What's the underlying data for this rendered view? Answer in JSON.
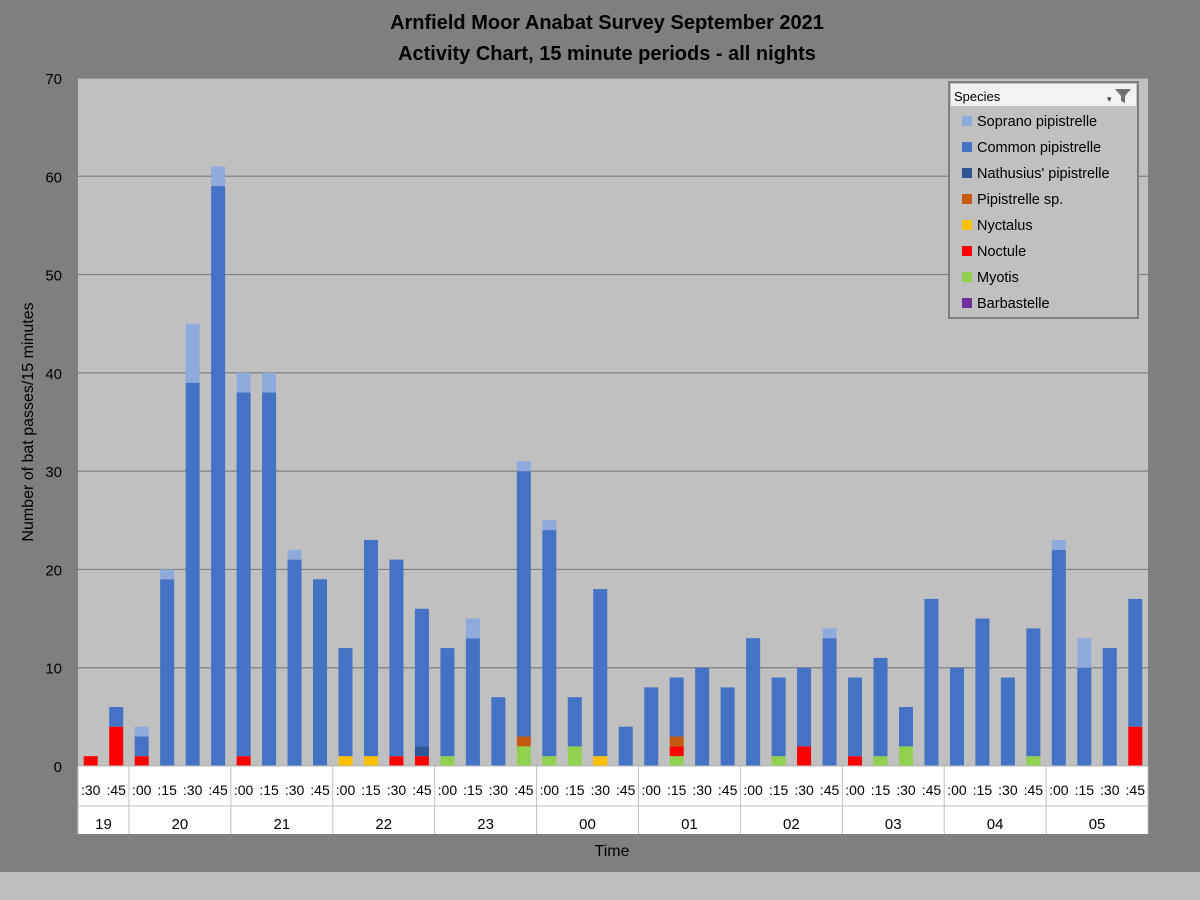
{
  "chart_data": {
    "type": "bar",
    "stacked": true,
    "title": "Arnfield Moor Anabat Survey September 2021",
    "subtitle": "Activity Chart, 15 minute periods - all nights",
    "xlabel": "Time",
    "ylabel": "Number of bat passes/15 minutes",
    "ylim": [
      0,
      70
    ],
    "yticks": [
      0,
      10,
      20,
      30,
      40,
      50,
      60,
      70
    ],
    "grid": true,
    "legend": {
      "title": "Species",
      "position": "top-right"
    },
    "hours": [
      {
        "label": "19",
        "count": 2
      },
      {
        "label": "20",
        "count": 4
      },
      {
        "label": "21",
        "count": 4
      },
      {
        "label": "22",
        "count": 4
      },
      {
        "label": "23",
        "count": 4
      },
      {
        "label": "00",
        "count": 4
      },
      {
        "label": "01",
        "count": 4
      },
      {
        "label": "02",
        "count": 4
      },
      {
        "label": "03",
        "count": 4
      },
      {
        "label": "04",
        "count": 4
      },
      {
        "label": "05",
        "count": 4
      }
    ],
    "categories": [
      ":30",
      ":45",
      ":00",
      ":15",
      ":30",
      ":45",
      ":00",
      ":15",
      ":30",
      ":45",
      ":00",
      ":15",
      ":30",
      ":45",
      ":00",
      ":15",
      ":30",
      ":45",
      ":00",
      ":15",
      ":30",
      ":45",
      ":00",
      ":15",
      ":30",
      ":45",
      ":00",
      ":15",
      ":30",
      ":45",
      ":00",
      ":15",
      ":30",
      ":45",
      ":00",
      ":15",
      ":30",
      ":45",
      ":00",
      ":15",
      ":30",
      ":45"
    ],
    "series": [
      {
        "name": "Barbastelle",
        "color": "#7030a0",
        "values": [
          0,
          0,
          0,
          0,
          0,
          0,
          0,
          0,
          0,
          0,
          0,
          0,
          0,
          0,
          0,
          0,
          0,
          0,
          0,
          0,
          0,
          0,
          0,
          0,
          0,
          0,
          0,
          0,
          0,
          0,
          0,
          0,
          0,
          0,
          0,
          0,
          0,
          0,
          0,
          0,
          0,
          0
        ]
      },
      {
        "name": "Myotis",
        "color": "#92d050",
        "values": [
          0,
          0,
          0,
          0,
          0,
          0,
          0,
          0,
          0,
          0,
          0,
          0,
          0,
          0,
          1,
          0,
          0,
          2,
          1,
          2,
          0,
          0,
          0,
          1,
          0,
          0,
          0,
          1,
          0,
          0,
          0,
          1,
          2,
          0,
          0,
          0,
          0,
          1,
          0,
          0,
          0,
          0
        ]
      },
      {
        "name": "Noctule",
        "color": "#ff0000",
        "values": [
          1,
          4,
          1,
          0,
          0,
          0,
          1,
          0,
          0,
          0,
          0,
          0,
          1,
          1,
          0,
          0,
          0,
          0,
          0,
          0,
          0,
          0,
          0,
          1,
          0,
          0,
          0,
          0,
          2,
          0,
          1,
          0,
          0,
          0,
          0,
          0,
          0,
          0,
          0,
          0,
          0,
          4
        ]
      },
      {
        "name": "Nyctalus",
        "color": "#ffc000",
        "values": [
          0,
          0,
          0,
          0,
          0,
          0,
          0,
          0,
          0,
          0,
          1,
          1,
          0,
          0,
          0,
          0,
          0,
          0,
          0,
          0,
          1,
          0,
          0,
          0,
          0,
          0,
          0,
          0,
          0,
          0,
          0,
          0,
          0,
          0,
          0,
          0,
          0,
          0,
          0,
          0,
          0,
          0
        ]
      },
      {
        "name": "Pipistrelle sp.",
        "color": "#c55a11",
        "values": [
          0,
          0,
          0,
          0,
          0,
          0,
          0,
          0,
          0,
          0,
          0,
          0,
          0,
          0,
          0,
          0,
          0,
          1,
          0,
          0,
          0,
          0,
          0,
          1,
          0,
          0,
          0,
          0,
          0,
          0,
          0,
          0,
          0,
          0,
          0,
          0,
          0,
          0,
          0,
          0,
          0,
          0
        ]
      },
      {
        "name": "Nathusius' pipistrelle",
        "color": "#2f5597",
        "values": [
          0,
          0,
          0,
          0,
          0,
          0,
          0,
          0,
          0,
          0,
          0,
          0,
          0,
          1,
          0,
          0,
          0,
          0,
          0,
          0,
          0,
          0,
          0,
          0,
          0,
          0,
          0,
          0,
          0,
          0,
          0,
          0,
          0,
          0,
          0,
          0,
          0,
          0,
          0,
          0,
          0,
          0
        ]
      },
      {
        "name": "Common pipistrelle",
        "color": "#4472c4",
        "values": [
          0,
          2,
          2,
          19,
          39,
          59,
          37,
          38,
          21,
          19,
          11,
          22,
          20,
          14,
          11,
          13,
          7,
          27,
          23,
          5,
          17,
          4,
          8,
          6,
          10,
          8,
          13,
          8,
          8,
          13,
          8,
          10,
          4,
          17,
          10,
          15,
          9,
          13,
          22,
          10,
          12,
          13
        ]
      },
      {
        "name": "Soprano pipistrelle",
        "color": "#8faadc",
        "values": [
          0,
          0,
          1,
          1,
          6,
          2,
          2,
          2,
          1,
          0,
          0,
          0,
          0,
          0,
          0,
          2,
          0,
          1,
          1,
          0,
          0,
          0,
          0,
          0,
          0,
          0,
          0,
          0,
          0,
          1,
          0,
          0,
          0,
          0,
          0,
          0,
          0,
          0,
          1,
          3,
          0,
          0
        ]
      }
    ],
    "legend_order": [
      "Soprano pipistrelle",
      "Common pipistrelle",
      "Nathusius' pipistrelle",
      "Pipistrelle sp.",
      "Nyctalus",
      "Noctule",
      "Myotis",
      "Barbastelle"
    ]
  }
}
